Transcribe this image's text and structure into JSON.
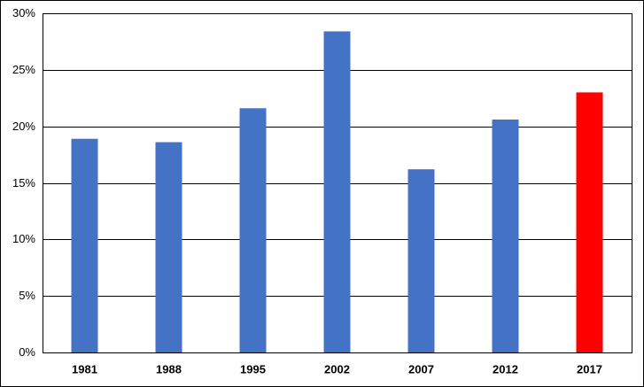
{
  "chart_data": {
    "type": "bar",
    "categories": [
      "1981",
      "1988",
      "1995",
      "2002",
      "2007",
      "2012",
      "2017"
    ],
    "values": [
      18.9,
      18.6,
      21.6,
      28.4,
      16.2,
      20.6,
      23.0
    ],
    "colors": [
      "#4472c4",
      "#4472c4",
      "#4472c4",
      "#4472c4",
      "#4472c4",
      "#4472c4",
      "#ff0000"
    ],
    "ylim": [
      0,
      30
    ],
    "yticks": [
      {
        "value": 0,
        "label": "0%"
      },
      {
        "value": 5,
        "label": "5%"
      },
      {
        "value": 10,
        "label": "10%"
      },
      {
        "value": 15,
        "label": "15%"
      },
      {
        "value": 20,
        "label": "20%"
      },
      {
        "value": 25,
        "label": "25%"
      },
      {
        "value": 30,
        "label": "30%"
      }
    ],
    "grid": true
  }
}
